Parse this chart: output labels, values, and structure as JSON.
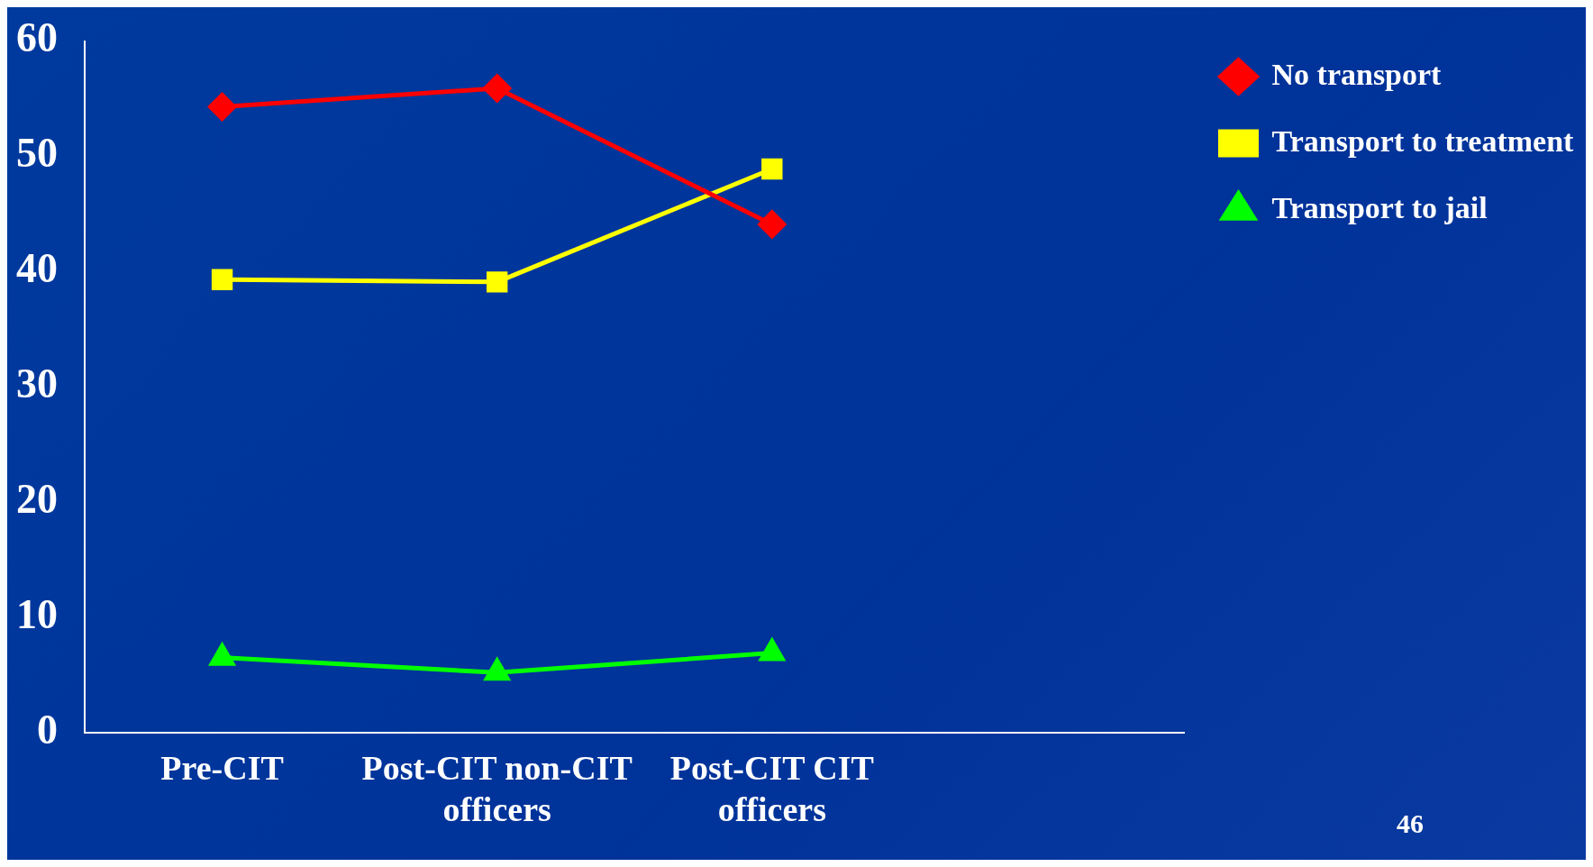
{
  "chart_data": {
    "type": "line",
    "categories": [
      "Pre-CIT",
      "Post-CIT non-CIT officers",
      "Post-CIT CIT officers",
      null
    ],
    "series": [
      {
        "name": "No transport",
        "color": "#ff0000",
        "marker": "diamond",
        "values": [
          54.3,
          55.9,
          44.1,
          null
        ]
      },
      {
        "name": "Transport to treatment",
        "color": "#ffff00",
        "marker": "square",
        "values": [
          39.3,
          39.1,
          48.9,
          null
        ]
      },
      {
        "name": "Transport to jail",
        "color": "#00ff00",
        "marker": "triangle",
        "values": [
          6.5,
          5.2,
          6.9,
          null
        ]
      }
    ],
    "ylim": [
      0,
      60
    ],
    "yticks": [
      0,
      10,
      20,
      30,
      40,
      50,
      60
    ],
    "grid": false,
    "legend": "right",
    "annotations": [
      "46"
    ]
  }
}
